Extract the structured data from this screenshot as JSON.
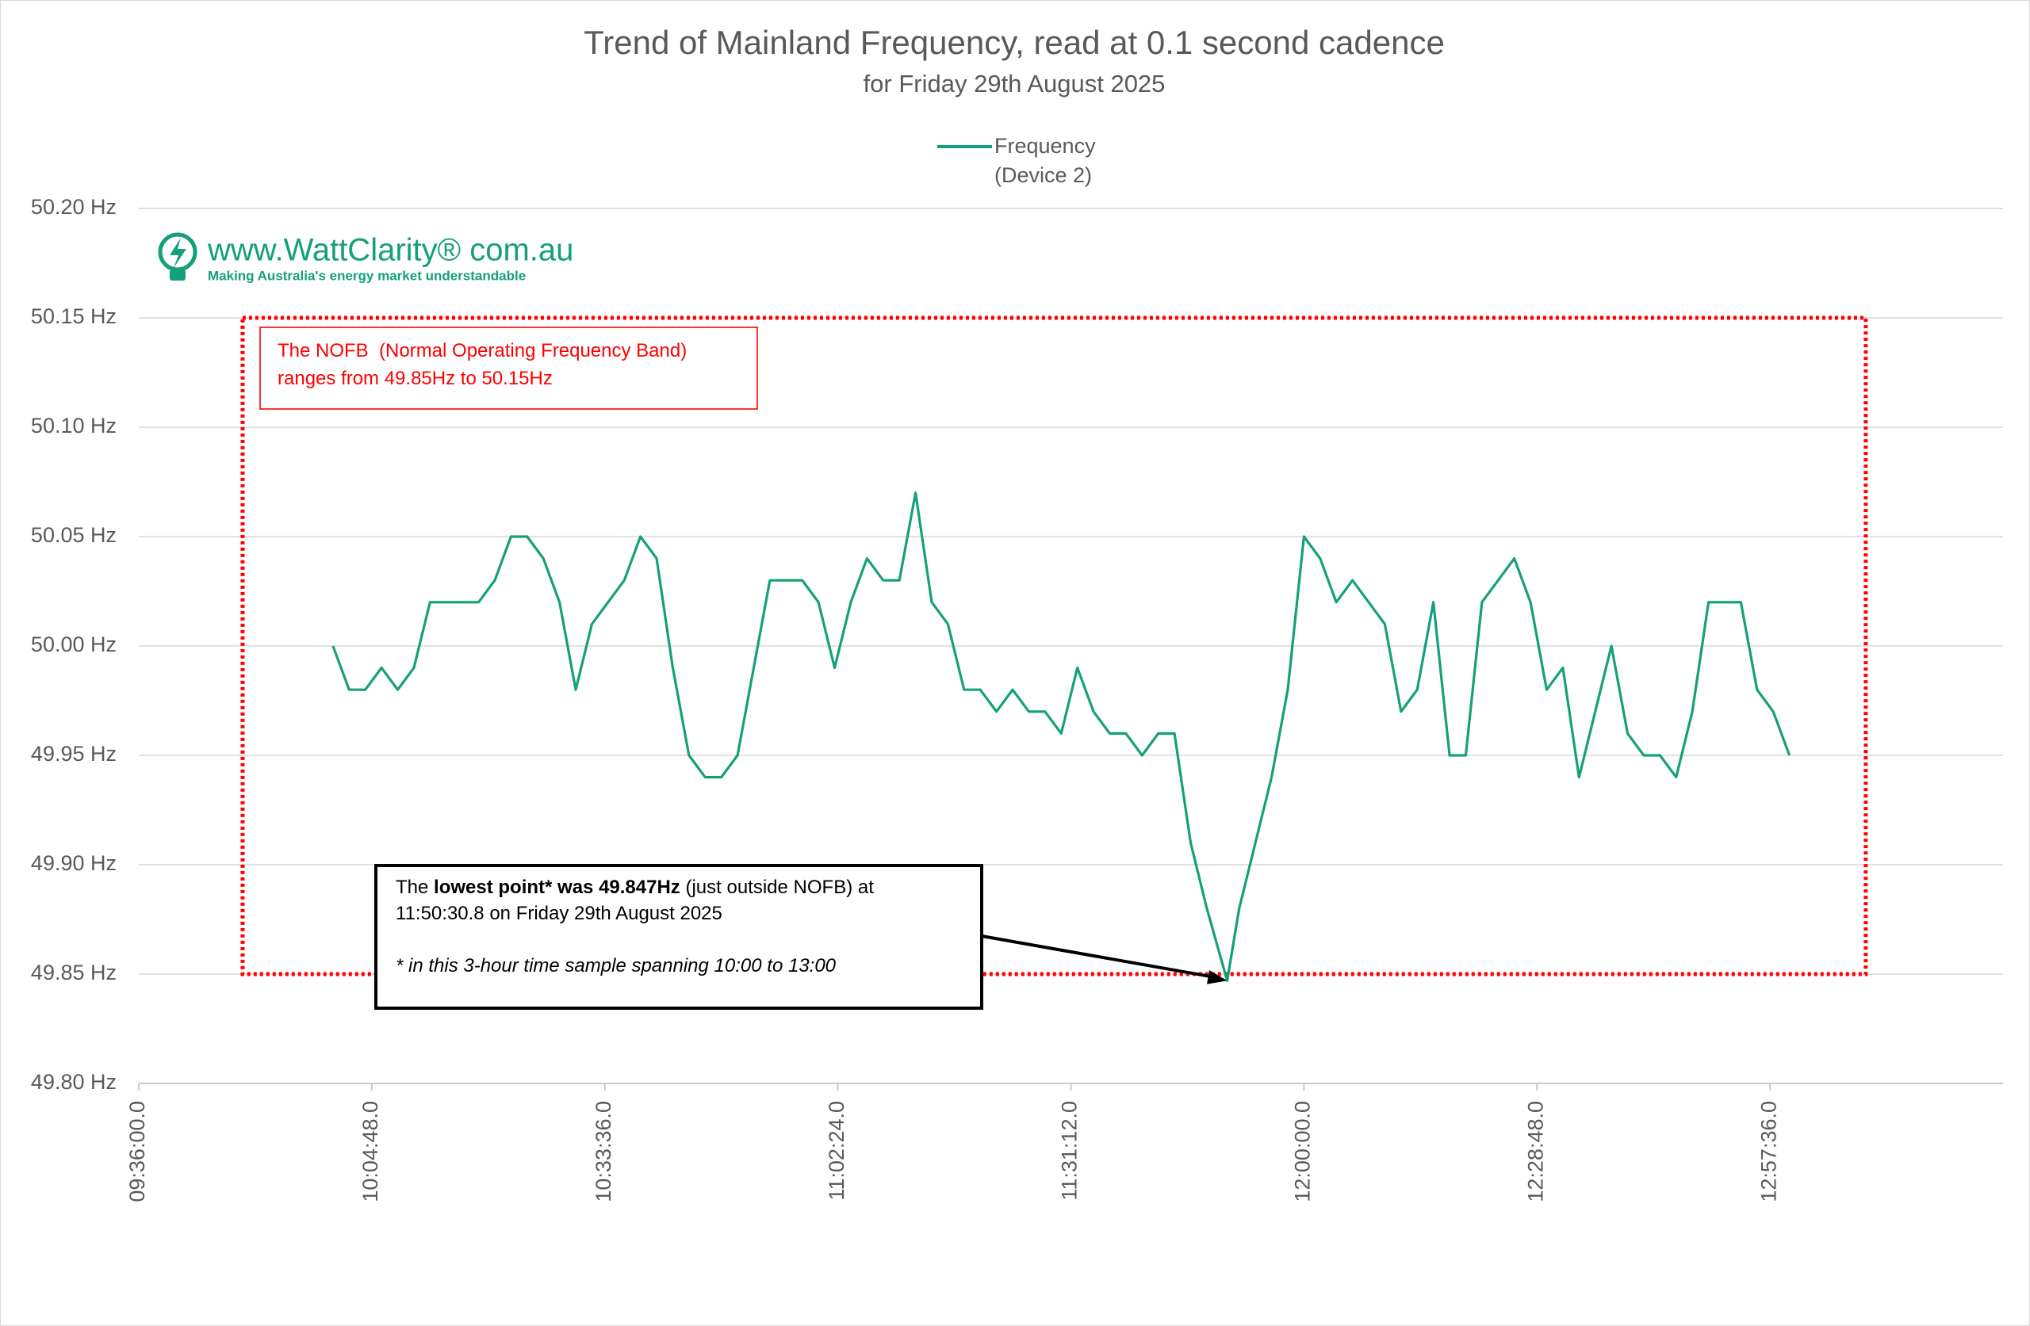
{
  "chart_data": {
    "type": "line",
    "title": "Trend of Mainland Frequency, read at 0.1 second cadence",
    "subtitle": "for Friday 29th August 2025",
    "x": [
      36000,
      36120,
      36240,
      36360,
      36480,
      36600,
      36720,
      36840,
      36960,
      37080,
      37200,
      37320,
      37440,
      37560,
      37680,
      37800,
      37920,
      38040,
      38160,
      38280,
      38400,
      38520,
      38640,
      38760,
      38880,
      39000,
      39120,
      39240,
      39360,
      39480,
      39600,
      39720,
      39840,
      39960,
      40080,
      40200,
      40320,
      40440,
      40560,
      40680,
      40800,
      40920,
      41040,
      41160,
      41280,
      41400,
      41520,
      41640,
      41760,
      41880,
      42000,
      42120,
      42240,
      42360,
      42480,
      42630.8,
      42720,
      42840,
      42960,
      43080,
      43200,
      43320,
      43440,
      43560,
      43680,
      43800,
      43920,
      44040,
      44160,
      44280,
      44400,
      44520,
      44640,
      44760,
      44880,
      45000,
      45120,
      45240,
      45360,
      45480,
      45600,
      45720,
      45840,
      45960,
      46080,
      46200,
      46320,
      46440,
      46560,
      46680,
      46800
    ],
    "series": [
      {
        "name": "Frequency (Device 2)",
        "color": "#14a07a",
        "values": [
          50.0,
          49.98,
          49.98,
          49.99,
          49.98,
          49.99,
          50.02,
          50.02,
          50.02,
          50.02,
          50.03,
          50.05,
          50.05,
          50.04,
          50.02,
          49.98,
          50.01,
          50.02,
          50.03,
          50.05,
          50.04,
          49.99,
          49.95,
          49.94,
          49.94,
          49.95,
          49.99,
          50.03,
          50.03,
          50.03,
          50.02,
          49.99,
          50.02,
          50.04,
          50.03,
          50.03,
          50.07,
          50.02,
          50.01,
          49.98,
          49.98,
          49.97,
          49.98,
          49.97,
          49.97,
          49.96,
          49.99,
          49.97,
          49.96,
          49.96,
          49.95,
          49.96,
          49.96,
          49.91,
          49.88,
          49.847,
          49.88,
          49.91,
          49.94,
          49.98,
          50.05,
          50.04,
          50.02,
          50.03,
          50.02,
          50.01,
          49.97,
          49.98,
          50.02,
          49.95,
          49.95,
          50.02,
          50.03,
          50.04,
          50.02,
          49.98,
          49.99,
          49.94,
          49.97,
          50.0,
          49.96,
          49.95,
          49.95,
          49.94,
          49.97,
          50.02,
          50.02,
          50.02,
          49.98,
          49.97,
          49.95
        ]
      }
    ],
    "xlim": [
      34560,
      48384
    ],
    "xticks": [
      {
        "value": 34560,
        "label": "09:36:00.0"
      },
      {
        "value": 36288,
        "label": "10:04:48.0"
      },
      {
        "value": 38016,
        "label": "10:33:36.0"
      },
      {
        "value": 39744,
        "label": "11:02:24.0"
      },
      {
        "value": 41472,
        "label": "11:31:12.0"
      },
      {
        "value": 43200,
        "label": "12:00:00.0"
      },
      {
        "value": 44928,
        "label": "12:28:48.0"
      },
      {
        "value": 46656,
        "label": "12:57:36.0"
      }
    ],
    "ylim": [
      49.8,
      50.2
    ],
    "yticks": [
      {
        "value": 49.8,
        "label": "49.80 Hz"
      },
      {
        "value": 49.85,
        "label": "49.85 Hz"
      },
      {
        "value": 49.9,
        "label": "49.90 Hz"
      },
      {
        "value": 49.95,
        "label": "49.95 Hz"
      },
      {
        "value": 50.0,
        "label": "50.00 Hz"
      },
      {
        "value": 50.05,
        "label": "50.05 Hz"
      },
      {
        "value": 50.1,
        "label": "50.10 Hz"
      },
      {
        "value": 50.15,
        "label": "50.15 Hz"
      },
      {
        "value": 50.2,
        "label": "50.20 Hz"
      }
    ],
    "grid": true,
    "legend": "top",
    "nofb": {
      "label": "The NOFB  (Normal Operating Frequency Band) ranges from 49.85Hz to 50.15Hz",
      "xlim": [
        35330,
        47366
      ],
      "ylim": [
        49.85,
        50.15
      ],
      "color": "#ff0000"
    },
    "low_point_note": {
      "parts": [
        "The ",
        "lowest point* was 49.847Hz",
        " (just outside NOFB) at 11:50:30.8 on Friday 29th August 2025"
      ],
      "note": "* in this 3-hour time sample spanning 10:00 to 13:00"
    },
    "watermark": {
      "site": "www.WattClarity® com.au",
      "tagline": "Making Australia's energy market understandable"
    }
  }
}
